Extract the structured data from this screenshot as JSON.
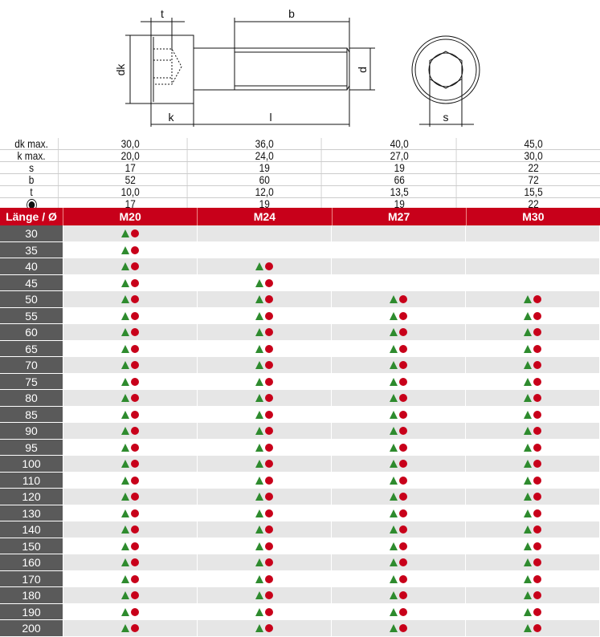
{
  "diagram": {
    "labels": {
      "t": "t",
      "b": "b",
      "dk": "dk",
      "d": "d",
      "k": "k",
      "l": "l",
      "s": "s"
    }
  },
  "spec": {
    "rows": [
      {
        "label": "dk max.",
        "values": [
          "30,0",
          "36,0",
          "40,0",
          "45,0"
        ]
      },
      {
        "label": "k max.",
        "values": [
          "20,0",
          "24,0",
          "27,0",
          "30,0"
        ]
      },
      {
        "label": "s",
        "values": [
          "17",
          "19",
          "19",
          "22"
        ]
      },
      {
        "label": "b",
        "values": [
          "52",
          "60",
          "66",
          "72"
        ]
      },
      {
        "label": "t",
        "values": [
          "10,0",
          "12,0",
          "13,5",
          "15,5"
        ]
      },
      {
        "label": "",
        "icon": "wrench-socket-icon",
        "values": [
          "17",
          "19",
          "19",
          "22"
        ]
      }
    ]
  },
  "table": {
    "header": "Länge / Ø",
    "columns": [
      "M20",
      "M24",
      "M27",
      "M30"
    ],
    "legend_icons": [
      "green-triangle-icon",
      "red-dot-icon"
    ],
    "colors": {
      "header": "#c8001a",
      "triangle": "#2e8b2e",
      "dot": "#c8001a",
      "length_cell": "#5a5a5a"
    },
    "rows": [
      {
        "length": "30",
        "available": [
          true,
          false,
          false,
          false
        ]
      },
      {
        "length": "35",
        "available": [
          true,
          false,
          false,
          false
        ]
      },
      {
        "length": "40",
        "available": [
          true,
          true,
          false,
          false
        ]
      },
      {
        "length": "45",
        "available": [
          true,
          true,
          false,
          false
        ]
      },
      {
        "length": "50",
        "available": [
          true,
          true,
          true,
          true
        ]
      },
      {
        "length": "55",
        "available": [
          true,
          true,
          true,
          true
        ]
      },
      {
        "length": "60",
        "available": [
          true,
          true,
          true,
          true
        ]
      },
      {
        "length": "65",
        "available": [
          true,
          true,
          true,
          true
        ]
      },
      {
        "length": "70",
        "available": [
          true,
          true,
          true,
          true
        ]
      },
      {
        "length": "75",
        "available": [
          true,
          true,
          true,
          true
        ]
      },
      {
        "length": "80",
        "available": [
          true,
          true,
          true,
          true
        ]
      },
      {
        "length": "85",
        "available": [
          true,
          true,
          true,
          true
        ]
      },
      {
        "length": "90",
        "available": [
          true,
          true,
          true,
          true
        ]
      },
      {
        "length": "95",
        "available": [
          true,
          true,
          true,
          true
        ]
      },
      {
        "length": "100",
        "available": [
          true,
          true,
          true,
          true
        ]
      },
      {
        "length": "110",
        "available": [
          true,
          true,
          true,
          true
        ]
      },
      {
        "length": "120",
        "available": [
          true,
          true,
          true,
          true
        ]
      },
      {
        "length": "130",
        "available": [
          true,
          true,
          true,
          true
        ]
      },
      {
        "length": "140",
        "available": [
          true,
          true,
          true,
          true
        ]
      },
      {
        "length": "150",
        "available": [
          true,
          true,
          true,
          true
        ]
      },
      {
        "length": "160",
        "available": [
          true,
          true,
          true,
          true
        ]
      },
      {
        "length": "170",
        "available": [
          true,
          true,
          true,
          true
        ]
      },
      {
        "length": "180",
        "available": [
          true,
          true,
          true,
          true
        ]
      },
      {
        "length": "190",
        "available": [
          true,
          true,
          true,
          true
        ]
      },
      {
        "length": "200",
        "available": [
          true,
          true,
          true,
          true
        ]
      }
    ]
  }
}
